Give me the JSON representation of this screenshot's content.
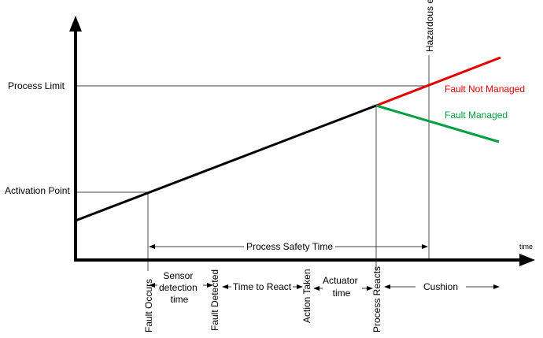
{
  "axes": {
    "x_label": "time",
    "y_levels": {
      "process_limit": "Process Limit",
      "activation_point": "Activation Point"
    }
  },
  "curves": {
    "fault_not_managed": {
      "label": "Fault Not Managed",
      "color": "#e00000"
    },
    "fault_managed": {
      "label": "Fault Managed",
      "color": "#00a040"
    },
    "process_line_color": "#000000"
  },
  "events": {
    "hazardous_event": "Hazardous event",
    "fault_occurs": "Fault Occurs",
    "fault_detected": "Fault Detected",
    "action_taken": "Action Taken",
    "process_reacts": "Process Reacts"
  },
  "intervals": {
    "process_safety_time": "Process Safety Time",
    "sensor_detection_time": [
      "Sensor",
      "detection",
      "time"
    ],
    "time_to_react": "Time to React",
    "actuator_time": [
      "Actuator",
      "time"
    ],
    "cushion": "Cushion"
  }
}
